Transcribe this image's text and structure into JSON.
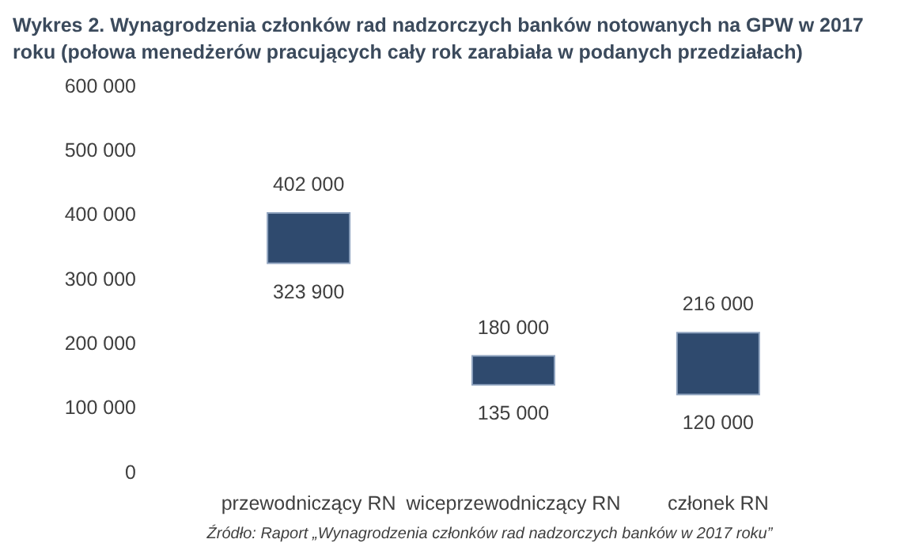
{
  "chart_data": {
    "type": "bar",
    "title": "Wykres 2. Wynagrodzenia członków rad nadzorczych banków notowanych na GPW w 2017 roku (połowa menedżerów pracujących cały rok zarabiała w podanych przedziałach)",
    "categories": [
      "przewodniczący RN",
      "wiceprzewodniczący RN",
      "członek RN"
    ],
    "base": [
      323900,
      135000,
      120000
    ],
    "values": [
      78100,
      45000,
      96000
    ],
    "color": "#2f4a6e",
    "ylim": [
      0,
      600000
    ],
    "yticks": [
      {
        "value": 0,
        "label": "0"
      },
      {
        "value": 100000,
        "label": "100 000"
      },
      {
        "value": 200000,
        "label": "200 000"
      },
      {
        "value": 300000,
        "label": "300 000"
      },
      {
        "value": 400000,
        "label": "400 000"
      },
      {
        "value": 500000,
        "label": "500 000"
      },
      {
        "value": 600000,
        "label": "600 000"
      }
    ],
    "grid": false,
    "annotations": [
      {
        "text": "402 000",
        "x": "przewodniczący RN",
        "y": 402000
      },
      {
        "text": "323 900",
        "x": "przewodniczący RN",
        "y": 323900
      },
      {
        "text": "180 000",
        "x": "wiceprzewodniczący RN",
        "y": 180000
      },
      {
        "text": "135 000",
        "x": "wiceprzewodniczący RN",
        "y": 135000
      },
      {
        "text": "216 000",
        "x": "członek RN",
        "y": 216000
      },
      {
        "text": "120 000",
        "x": "członek RN",
        "y": 120000
      },
      "Źródło: Raport „Wynagrodzenia członków rad nadzorczych banków w 2017 roku”"
    ]
  }
}
